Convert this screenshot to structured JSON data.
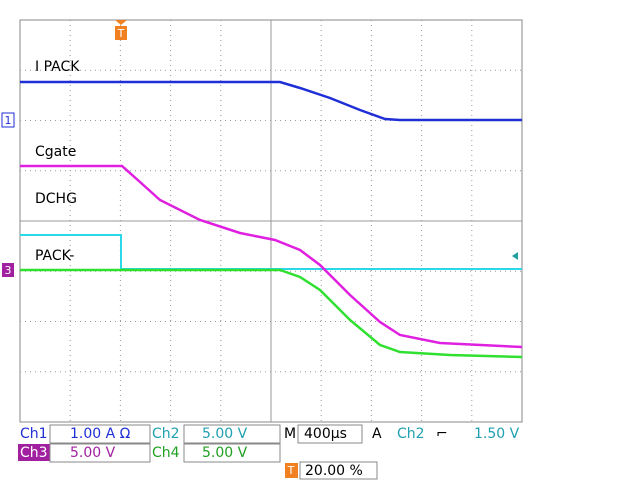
{
  "traces": [
    {
      "label": "I PACK"
    },
    {
      "label": "Cgate"
    },
    {
      "label": "DCHG"
    },
    {
      "label": "PACK-"
    }
  ],
  "markers": {
    "ch1": "1",
    "ch3": "3",
    "trigger": "T"
  },
  "readout": {
    "ch1": {
      "name": "Ch1",
      "scale": "1.00 A Ω"
    },
    "ch2": {
      "name": "Ch2",
      "scale": "5.00 V"
    },
    "ch3": {
      "name": "Ch3",
      "scale": "5.00 V"
    },
    "ch4": {
      "name": "Ch4",
      "scale": "5.00 V"
    },
    "timebase": {
      "label": "M",
      "value": "400µs"
    },
    "trigger": {
      "label": "A",
      "source": "Ch2",
      "slope": "⌐",
      "level": "1.50 V"
    },
    "position": {
      "label": "T",
      "value": "20.00 %"
    }
  }
}
